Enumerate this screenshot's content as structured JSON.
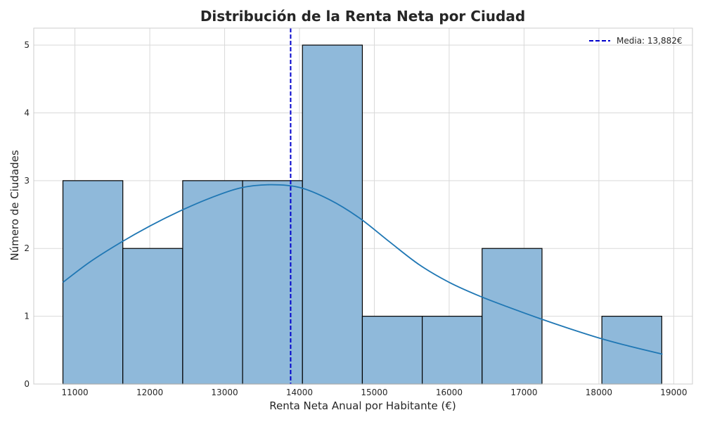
{
  "chart_data": {
    "type": "histogram",
    "title": "Distribución de la Renta Neta por Ciudad",
    "xlabel": "Renta Neta Anual por Habitante (€)",
    "ylabel": "Número de Ciudades",
    "xlim": [
      10450,
      19250
    ],
    "ylim": [
      0,
      5.25
    ],
    "xticks": [
      11000,
      12000,
      13000,
      14000,
      15000,
      16000,
      17000,
      18000,
      19000
    ],
    "yticks": [
      0,
      1,
      2,
      3,
      4,
      5
    ],
    "grid": true,
    "bins": [
      {
        "start": 10840,
        "end": 11640,
        "count": 3
      },
      {
        "start": 11640,
        "end": 12440,
        "count": 2
      },
      {
        "start": 12440,
        "end": 13240,
        "count": 3
      },
      {
        "start": 13240,
        "end": 14040,
        "count": 3
      },
      {
        "start": 14040,
        "end": 14840,
        "count": 5
      },
      {
        "start": 14840,
        "end": 15640,
        "count": 1
      },
      {
        "start": 15640,
        "end": 16440,
        "count": 1
      },
      {
        "start": 16440,
        "end": 17240,
        "count": 2
      },
      {
        "start": 17240,
        "end": 18040,
        "count": 0
      },
      {
        "start": 18040,
        "end": 18840,
        "count": 1
      }
    ],
    "kde": {
      "x": [
        10840,
        11200,
        11600,
        12000,
        12400,
        12800,
        13200,
        13600,
        14000,
        14400,
        14800,
        15200,
        15600,
        16000,
        16400,
        16800,
        17200,
        17600,
        18000,
        18400,
        18850
      ],
      "y": [
        1.5,
        1.8,
        2.08,
        2.33,
        2.55,
        2.74,
        2.89,
        2.94,
        2.9,
        2.72,
        2.45,
        2.1,
        1.76,
        1.5,
        1.3,
        1.13,
        0.97,
        0.82,
        0.68,
        0.56,
        0.44
      ]
    },
    "mean": {
      "value": 13882,
      "label": "Media: 13,882€",
      "color": "#0000cc"
    },
    "legend": {
      "placement": "top-right"
    },
    "colors": {
      "bar_fill": "#8fb9da",
      "bar_edge": "#000000",
      "kde_line": "#1f77b4",
      "grid": "#d9d9d9"
    }
  }
}
